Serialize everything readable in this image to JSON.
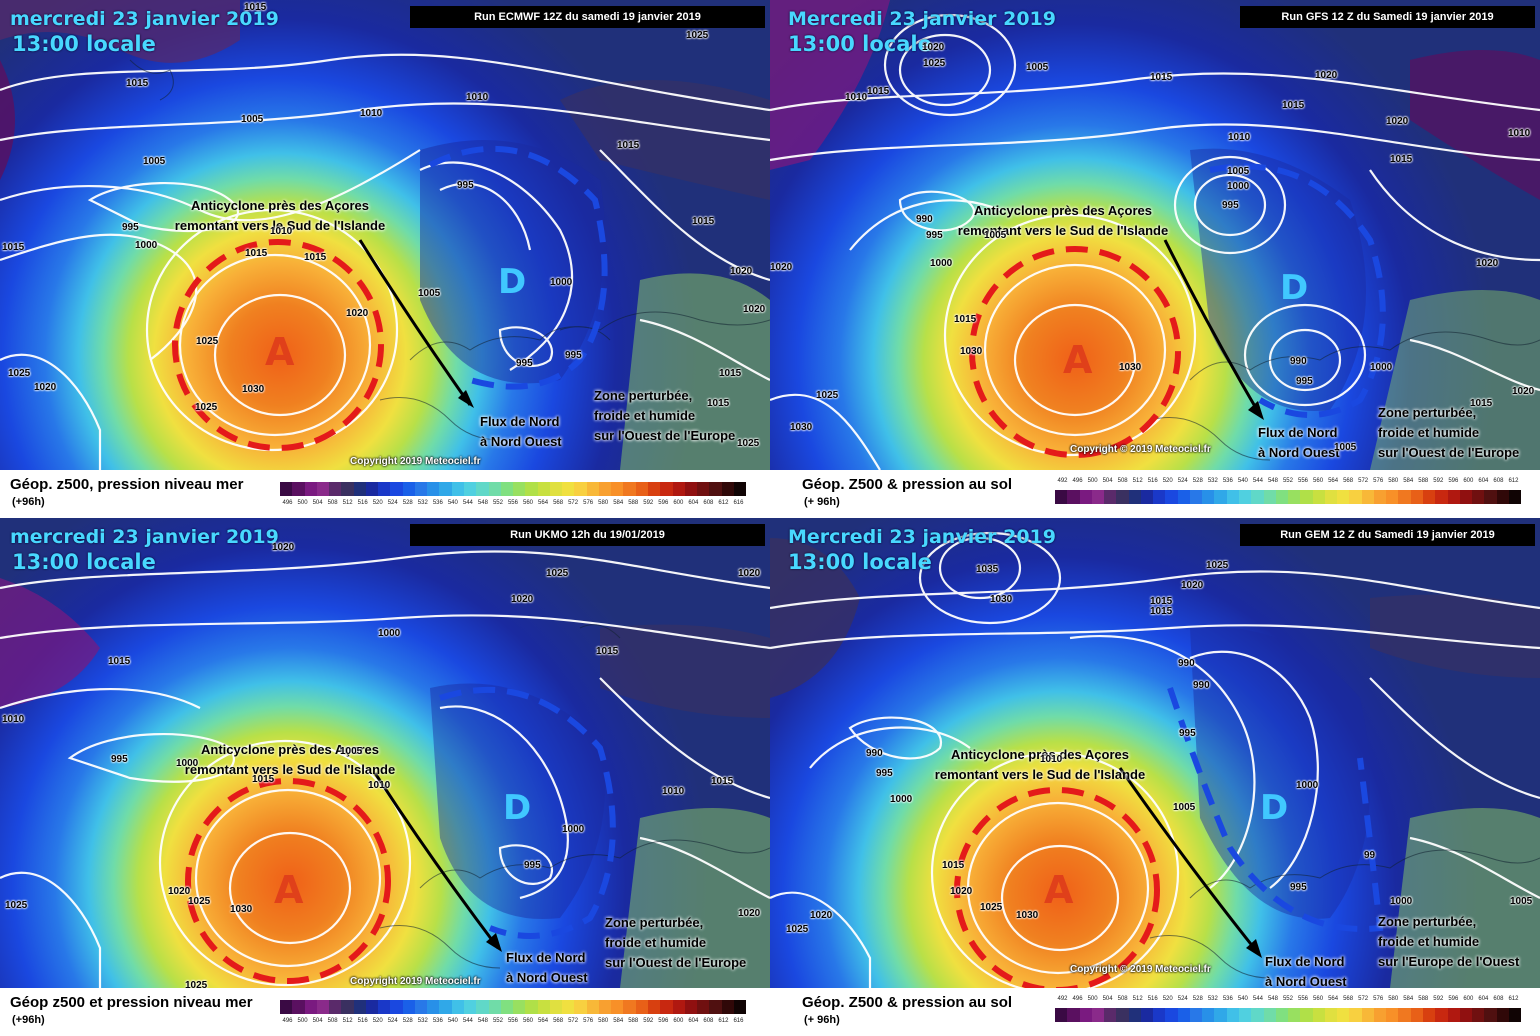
{
  "colors": {
    "scale": [
      "#3a0a44",
      "#5a1060",
      "#7a1a80",
      "#8a2a8a",
      "#5a2a6a",
      "#3a3060",
      "#20307a",
      "#1a2aa0",
      "#1a38c8",
      "#1a48e0",
      "#1a60e8",
      "#2878e8",
      "#2890e8",
      "#30a8e8",
      "#40c0e8",
      "#50d0e0",
      "#60d8c8",
      "#70dca8",
      "#80e080",
      "#98e060",
      "#b0e048",
      "#c8e040",
      "#e0e040",
      "#f0e040",
      "#f8d040",
      "#f8b838",
      "#f8a030",
      "#f89028",
      "#f07820",
      "#e86018",
      "#d84010",
      "#c82810",
      "#b01810",
      "#901010",
      "#701010",
      "#501010",
      "#300808",
      "#100404"
    ],
    "date_text": "#48d8ff",
    "anticyclone_ring": "#e41a1a",
    "depression_ring": "#1a48e0"
  },
  "panels": [
    {
      "date": "mercredi 23 janvier 2019",
      "time": "13:00 locale",
      "run": "Run ECMWF 12Z du samedi 19 janvier 2019",
      "legend_title": "Géop. z500, pression niveau mer",
      "legend_sub": "(+96h)",
      "scale_labels": [
        "496",
        "500",
        "504",
        "508",
        "512",
        "516",
        "520",
        "524",
        "528",
        "532",
        "536",
        "540",
        "544",
        "548",
        "552",
        "556",
        "560",
        "564",
        "568",
        "572",
        "576",
        "580",
        "584",
        "588",
        "592",
        "596",
        "600",
        "604",
        "608",
        "612",
        "616"
      ],
      "high_label": "A",
      "low_label": "D",
      "anticyclone_note": [
        "Anticyclone près des Açores",
        "remontant vers le Sud de l'Islande"
      ],
      "flow_note": [
        "Flux de Nord",
        "à Nord Ouest"
      ],
      "zone_note": [
        "Zone perturbée,",
        "froide et humide",
        "sur l'Ouest de l'Europe"
      ],
      "copyright": "Copyright 2019 Meteociel.fr",
      "isobars": [
        "1015",
        "1025",
        "1015",
        "1010",
        "1005",
        "1005",
        "995",
        "1000",
        "1010",
        "1015",
        "1015",
        "1020",
        "1025",
        "1025",
        "1030",
        "1020",
        "1025",
        "1020",
        "1015",
        "995",
        "1000",
        "1005",
        "995",
        "995",
        "1015",
        "1020",
        "1015",
        "1015",
        "1025",
        "1015",
        "1010"
      ]
    },
    {
      "date": "Mercredi 23 janvier 2019",
      "time": "13:00 locale",
      "run": "Run GFS 12 Z du Samedi 19 janvier 2019",
      "legend_title": "Géop. Z500 & pression au sol",
      "legend_sub": "(+ 96h)",
      "scale_labels": [
        "492",
        "496",
        "500",
        "504",
        "508",
        "512",
        "516",
        "520",
        "524",
        "528",
        "532",
        "536",
        "540",
        "544",
        "548",
        "552",
        "556",
        "560",
        "564",
        "568",
        "572",
        "576",
        "580",
        "584",
        "588",
        "592",
        "596",
        "600",
        "604",
        "608",
        "612"
      ],
      "high_label": "A",
      "low_label": "D",
      "anticyclone_note": [
        "Anticyclone près des Açores",
        "remontant vers le Sud de l'Islande"
      ],
      "flow_note": [
        "Flux de Nord",
        "à Nord Ouest"
      ],
      "zone_note": [
        "Zone perturbée,",
        "froide et humide",
        "sur l'Ouest de l'Europe"
      ],
      "copyright": "Copyright © 2019 Meteociel.fr",
      "isobars": [
        "1020",
        "1025",
        "1010",
        "1015",
        "1005",
        "1015",
        "1020",
        "1015",
        "1020",
        "1010",
        "1010",
        "1015",
        "990",
        "995",
        "1000",
        "1005",
        "1005",
        "1000",
        "995",
        "1020",
        "1020",
        "1015",
        "1030",
        "1030",
        "1025",
        "1030",
        "990",
        "995",
        "1000",
        "1015",
        "1020",
        "1005"
      ]
    },
    {
      "date": "mercredi 23 janvier 2019",
      "time": "13:00 locale",
      "run": "Run UKMO 12h du 19/01/2019",
      "legend_title": "Géop z500 et pression niveau mer",
      "legend_sub": "(+96h)",
      "scale_labels": [
        "496",
        "500",
        "504",
        "508",
        "512",
        "516",
        "520",
        "524",
        "528",
        "532",
        "536",
        "540",
        "544",
        "548",
        "552",
        "556",
        "560",
        "564",
        "568",
        "572",
        "576",
        "580",
        "584",
        "588",
        "592",
        "596",
        "600",
        "604",
        "608",
        "612",
        "616"
      ],
      "high_label": "A",
      "low_label": "D",
      "anticyclone_note": [
        "Anticyclone près des Açores",
        "remontant vers le Sud de l'Islande"
      ],
      "flow_note": [
        "Flux de Nord",
        "à Nord Ouest"
      ],
      "zone_note": [
        "Zone perturbée,",
        "froide et humide",
        "sur l'Ouest de l'Europe"
      ],
      "copyright": "Copyright 2019 Meteociel.fr",
      "isobars": [
        "1020",
        "1025",
        "1020",
        "1020",
        "1000",
        "1015",
        "1015",
        "1010",
        "995",
        "1000",
        "1005",
        "1015",
        "1010",
        "1010",
        "1015",
        "1000",
        "995",
        "1020",
        "1025",
        "1030",
        "1025",
        "1020",
        "1025"
      ]
    },
    {
      "date": "Mercredi 23 janvier 2019",
      "time": "13:00 locale",
      "run": "Run GEM 12 Z du Samedi 19 janvier 2019",
      "legend_title": "Géop. Z500 & pression au sol",
      "legend_sub": "(+ 96h)",
      "scale_labels": [
        "492",
        "496",
        "500",
        "504",
        "508",
        "512",
        "516",
        "520",
        "524",
        "528",
        "532",
        "536",
        "540",
        "544",
        "548",
        "552",
        "556",
        "560",
        "564",
        "568",
        "572",
        "576",
        "580",
        "584",
        "588",
        "592",
        "596",
        "600",
        "604",
        "608",
        "612"
      ],
      "high_label": "A",
      "low_label": "D",
      "anticyclone_note": [
        "Anticyclone près des Açores",
        "remontant vers le Sud de l'Islande"
      ],
      "flow_note": [
        "Flux de Nord",
        "à Nord Ouest"
      ],
      "zone_note": [
        "Zone perturbée,",
        "froide et humide",
        "sur l'Europe de l'Ouest"
      ],
      "copyright": "Copyright © 2019 Meteociel.fr",
      "isobars": [
        "1035",
        "1030",
        "1025",
        "1020",
        "1015",
        "1015",
        "990",
        "990",
        "995",
        "990",
        "995",
        "1000",
        "1005",
        "1010",
        "1000",
        "995",
        "99",
        "1000",
        "1005",
        "1015",
        "1020",
        "1020",
        "1025",
        "1030",
        "1025"
      ]
    }
  ]
}
